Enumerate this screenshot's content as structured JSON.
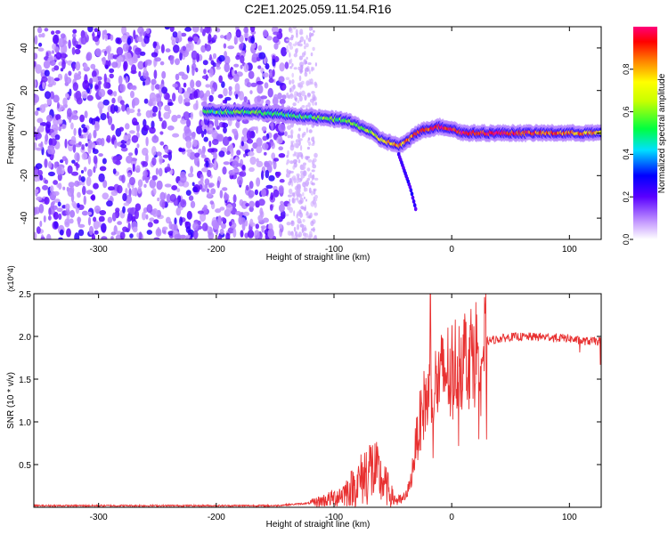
{
  "title": "C2E1.2025.059.11.54.R16",
  "chart_data": [
    {
      "type": "heatmap",
      "xlabel": "Height of straight line (km)",
      "ylabel": "Frequency (Hz)",
      "xlim": [
        -355,
        127
      ],
      "ylim": [
        -50,
        50
      ],
      "xticks": [
        -300,
        -200,
        -100,
        0,
        100
      ],
      "yticks": [
        -40,
        -20,
        0,
        20,
        40
      ],
      "colorbar": {
        "label": "Normalized spectral amplitude",
        "range": [
          0,
          1
        ],
        "ticks": [
          "0.0",
          "0.2",
          "0.4",
          "0.6",
          "0.8"
        ],
        "tick_values": [
          0.0,
          0.2,
          0.4,
          0.6,
          0.8
        ]
      },
      "noise_region": {
        "x": [
          -355,
          -140
        ],
        "freq": [
          -50,
          50
        ],
        "amplitude": 0.05
      },
      "ridge": {
        "x": [
          -210,
          -190,
          -170,
          -150,
          -130,
          -110,
          -90,
          -70,
          -60,
          -50,
          -45,
          -40,
          -30,
          -20,
          -10,
          0,
          10,
          30,
          60,
          90,
          127
        ],
        "freq": [
          10,
          10,
          10,
          9,
          8,
          7,
          6,
          1,
          -3,
          -5,
          -6,
          -5,
          0,
          2,
          3,
          2,
          0,
          0,
          0,
          0,
          0
        ],
        "amplitude": [
          0.5,
          0.55,
          0.55,
          0.5,
          0.5,
          0.55,
          0.6,
          0.6,
          0.7,
          0.8,
          0.85,
          0.8,
          0.85,
          0.9,
          0.95,
          0.95,
          0.95,
          0.95,
          0.9,
          0.85,
          0.8
        ]
      },
      "tail": {
        "x": [
          -45,
          -40,
          -35,
          -30
        ],
        "freq": [
          -10,
          -18,
          -26,
          -37
        ]
      }
    },
    {
      "type": "line",
      "xlabel": "Height of straight line (km)",
      "ylabel": "SNR (10 * v/v)",
      "y_multiplier": "(x10^4)",
      "xlim": [
        -355,
        127
      ],
      "ylim": [
        0,
        2.5
      ],
      "xticks": [
        -300,
        -200,
        -100,
        0,
        100
      ],
      "yticks": [
        0.5,
        1.0,
        1.5,
        2.0,
        2.5
      ],
      "ytick_labels": [
        "0.5",
        "1.0",
        "1.5",
        "2.0",
        "2.5"
      ],
      "color": "#e83030",
      "series": [
        {
          "x": [
            -355,
            -300,
            -200,
            -150,
            -120,
            -100,
            -90,
            -80,
            -70,
            -65,
            -60,
            -55,
            -50,
            -45,
            -40,
            -35,
            -30,
            -25,
            -20,
            -15,
            -10,
            -5,
            0,
            10,
            20,
            30,
            50,
            80,
            100,
            110,
            120,
            127
          ],
          "y": [
            0.02,
            0.02,
            0.02,
            0.02,
            0.05,
            0.12,
            0.2,
            0.3,
            0.5,
            0.45,
            0.35,
            0.25,
            0.12,
            0.08,
            0.1,
            0.3,
            0.8,
            1.2,
            1.35,
            1.45,
            1.55,
            1.65,
            1.7,
            1.82,
            1.9,
            1.95,
            2.0,
            2.0,
            1.98,
            1.95,
            1.95,
            1.95
          ]
        }
      ]
    }
  ]
}
